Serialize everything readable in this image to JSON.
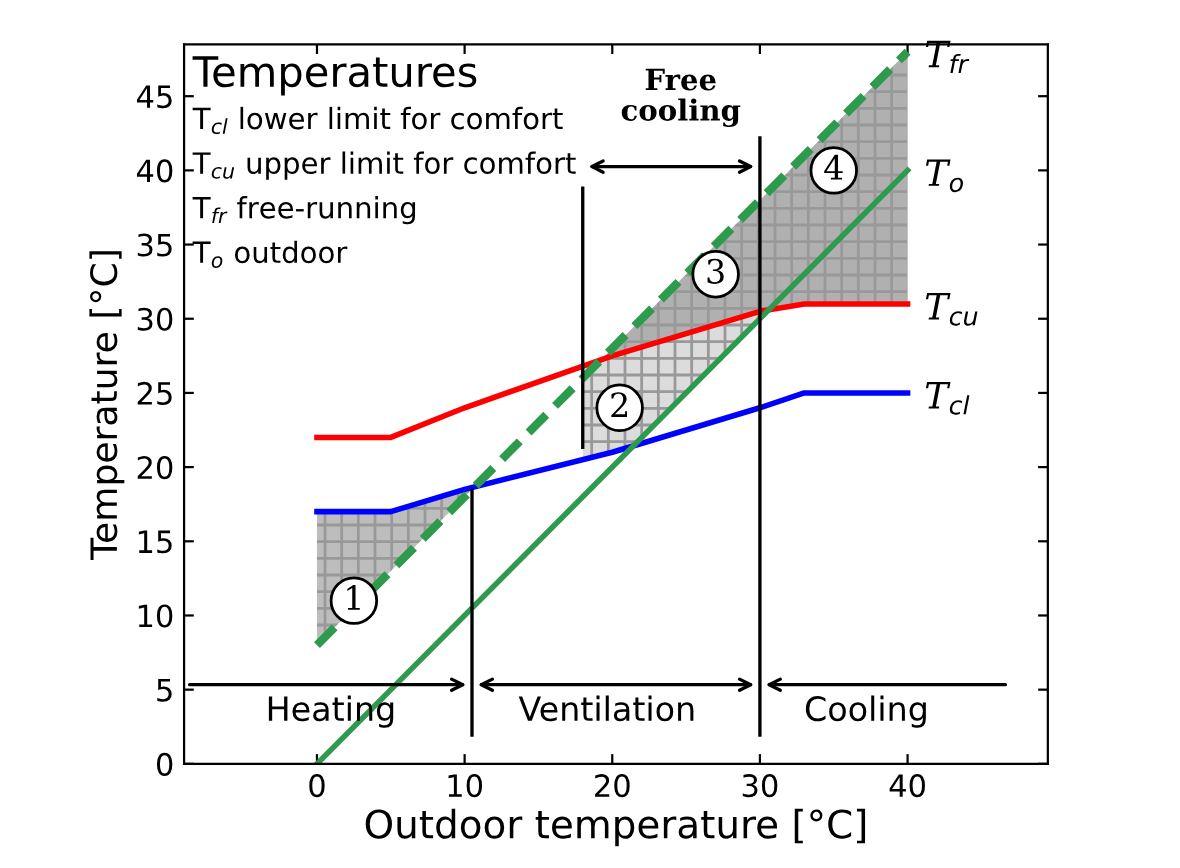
{
  "chart_data": {
    "type": "line",
    "xlabel": "Outdoor temperature [°C]",
    "ylabel": "Temperature [°C]",
    "xlim": [
      -9,
      49.5
    ],
    "ylim": [
      0,
      48.5
    ],
    "xticks": [
      0,
      10,
      20,
      30,
      40
    ],
    "yticks": [
      0,
      5,
      10,
      15,
      20,
      25,
      30,
      35,
      40,
      45
    ],
    "grid": false,
    "marker": "none",
    "series": [
      {
        "name": "T$_{cl}$",
        "color": "#0000ff",
        "line_style": "solid",
        "x": [
          0,
          5,
          10,
          20,
          30,
          33,
          40
        ],
        "values": [
          17,
          17,
          18.5,
          21,
          24,
          25,
          25
        ]
      },
      {
        "name": "T$_{cu}$",
        "color": "#ff0000",
        "line_style": "solid",
        "x": [
          0,
          5,
          10,
          20,
          30,
          33,
          40
        ],
        "values": [
          22,
          22,
          24,
          27.5,
          30.5,
          31,
          31
        ]
      },
      {
        "name": "T$_{fr}$",
        "color": "#2e9a4e",
        "line_style": "dashed",
        "x": [
          0,
          40
        ],
        "values": [
          8,
          48
        ]
      },
      {
        "name": "T$_{o}$",
        "color": "#2e9a4e",
        "line_style": "solid",
        "x": [
          0,
          40
        ],
        "values": [
          0,
          40
        ]
      }
    ],
    "ref_lines": [
      {
        "axis": "x",
        "value": 10.5,
        "color": "#000000"
      },
      {
        "axis": "x",
        "value": 30,
        "color": "#000000"
      },
      {
        "axis": "x",
        "value": 18,
        "color": "#000000"
      }
    ],
    "annotations": [
      "Temperatures",
      "T$_{cl}$ lower limit for comfort",
      "T$_{cu}$ upper limit for comfort",
      "T$_{fr}$ free-running",
      "T$_{o}$ outdoor",
      "Heating",
      "Ventilation",
      "Cooling",
      "Free\ncooling",
      {
        "text": "1",
        "x": 2.5,
        "y": 11
      },
      {
        "text": "2",
        "x": 20.5,
        "y": 24
      },
      {
        "text": "3",
        "x": 27,
        "y": 33
      },
      {
        "text": "4",
        "x": 35,
        "y": 40
      }
    ]
  }
}
